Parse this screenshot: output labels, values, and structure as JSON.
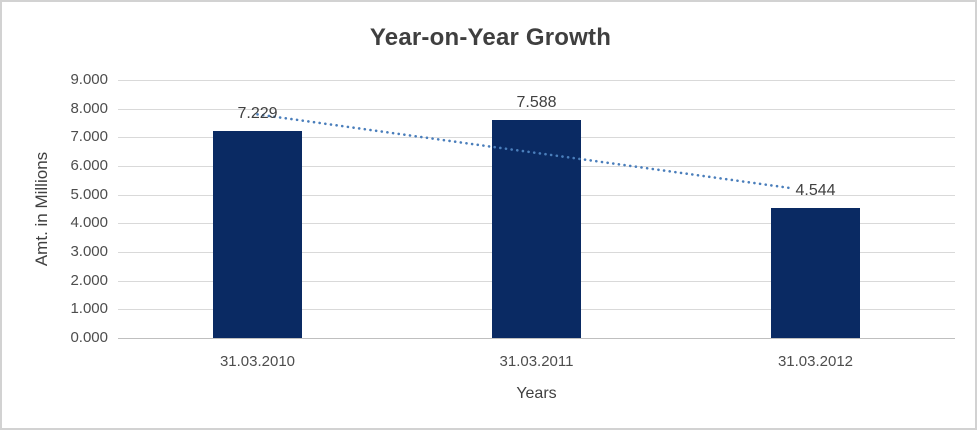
{
  "chart_data": {
    "type": "bar",
    "title": "Year-on-Year Growth",
    "xlabel": "Years",
    "ylabel": "Amt. in Millions",
    "categories": [
      "31.03.2010",
      "31.03.2011",
      "31.03.2012"
    ],
    "values": [
      7.229,
      7.588,
      4.544
    ],
    "value_labels": [
      "7.229",
      "7.588",
      "4.544"
    ],
    "ylim": [
      0,
      9
    ],
    "ytick_interval": 1,
    "ytick_labels": [
      "0.000",
      "1.000",
      "2.000",
      "3.000",
      "4.000",
      "5.000",
      "6.000",
      "7.000",
      "8.000",
      "9.000"
    ],
    "grid": true,
    "legend": "none",
    "trendline": {
      "type": "linear",
      "style": "dotted",
      "start_value": 7.8,
      "end_value": 5.11
    },
    "colors": {
      "bar": "#0a2a63",
      "trendline": "#4a7ebb",
      "gridline": "#d9d9d9",
      "axis_line": "#bfbfbf",
      "title_text": "#3f3f3f",
      "tick_text": "#4d4d4d",
      "label_text": "#404040",
      "frame_border": "#d2d2d2",
      "background": "#ffffff"
    }
  }
}
